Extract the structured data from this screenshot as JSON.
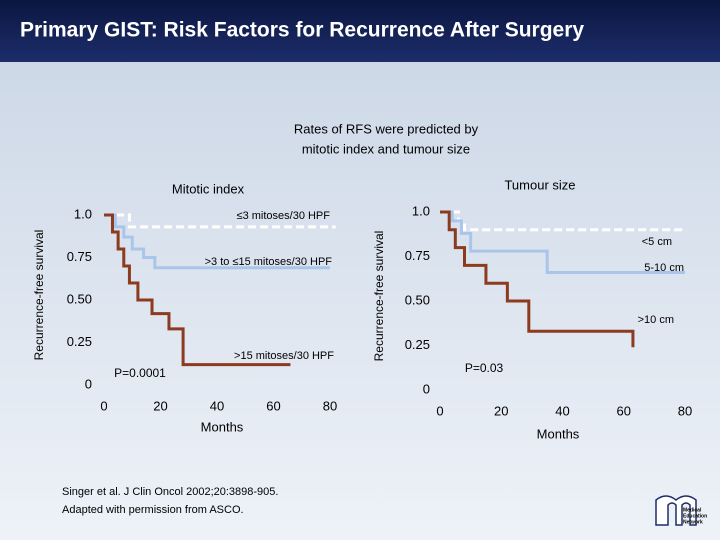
{
  "title": "Primary GIST: Risk Factors for Recurrence After Surgery",
  "subtitle": [
    "Rates of RFS were predicted by",
    "mitotic index and tumour size"
  ],
  "citation": [
    "Singer et al. J Clin Oncol 2002;20:3898-905.",
    "Adapted with permission from ASCO."
  ],
  "logo": [
    "Medical",
    "Education",
    "Network"
  ],
  "chart_data": [
    {
      "type": "line",
      "step": true,
      "title": "Mitotic index",
      "ylabel": "Recurrence-free survival",
      "xlabel": "Months",
      "annotation": "P=0.0001",
      "xlim": [
        0,
        80
      ],
      "ylim": [
        0,
        1
      ],
      "xticks": [
        0,
        20,
        40,
        60,
        80
      ],
      "yticks": [
        0,
        0.25,
        {
          "value": 0.5,
          "label": "0.50"
        },
        0.75,
        {
          "value": 1,
          "label": "1.0"
        }
      ],
      "series": [
        {
          "name": "≤3 mitoses/30 HPF",
          "color": "#ffffff",
          "dashed": true,
          "x": [
            0,
            9,
            82
          ],
          "values": [
            1,
            0.93,
            0.93
          ]
        },
        {
          "name": ">3 to ≤15 mitoses/30 HPF",
          "color": "#a9c6ea",
          "x": [
            0,
            4,
            7,
            10,
            14,
            18,
            80
          ],
          "values": [
            1,
            0.93,
            0.87,
            0.8,
            0.75,
            0.69,
            0.69
          ]
        },
        {
          "name": ">15 mitoses/30 HPF",
          "color": "#8c3b1f",
          "x": [
            0,
            3,
            5,
            7,
            9,
            12,
            17,
            23,
            28,
            66
          ],
          "values": [
            1,
            0.9,
            0.8,
            0.7,
            0.6,
            0.5,
            0.42,
            0.33,
            0.12,
            0.12
          ]
        }
      ]
    },
    {
      "type": "line",
      "step": true,
      "title": "Tumour size",
      "ylabel": "Recurrence-free survival",
      "xlabel": "Months",
      "annotation": "P=0.03",
      "xlim": [
        0,
        80
      ],
      "ylim": [
        0,
        1
      ],
      "xticks": [
        0,
        20,
        40,
        60,
        80
      ],
      "yticks": [
        0,
        0.25,
        {
          "value": 0.5,
          "label": "0.50"
        },
        0.75,
        {
          "value": 1,
          "label": "1.0"
        }
      ],
      "series": [
        {
          "name": "<5 cm",
          "color": "#ffffff",
          "dashed": true,
          "x": [
            0,
            6,
            8,
            80
          ],
          "values": [
            1,
            0.95,
            0.9,
            0.9
          ]
        },
        {
          "name": "5-10 cm",
          "color": "#a9c6ea",
          "x": [
            0,
            4,
            7,
            10,
            35,
            80
          ],
          "values": [
            1,
            0.95,
            0.88,
            0.78,
            0.66,
            0.66
          ]
        },
        {
          "name": ">10 cm",
          "color": "#8c3b1f",
          "x": [
            0,
            3,
            5,
            8,
            15,
            22,
            29,
            63
          ],
          "values": [
            1,
            0.9,
            0.8,
            0.7,
            0.6,
            0.5,
            0.33,
            0.24
          ]
        }
      ]
    }
  ]
}
